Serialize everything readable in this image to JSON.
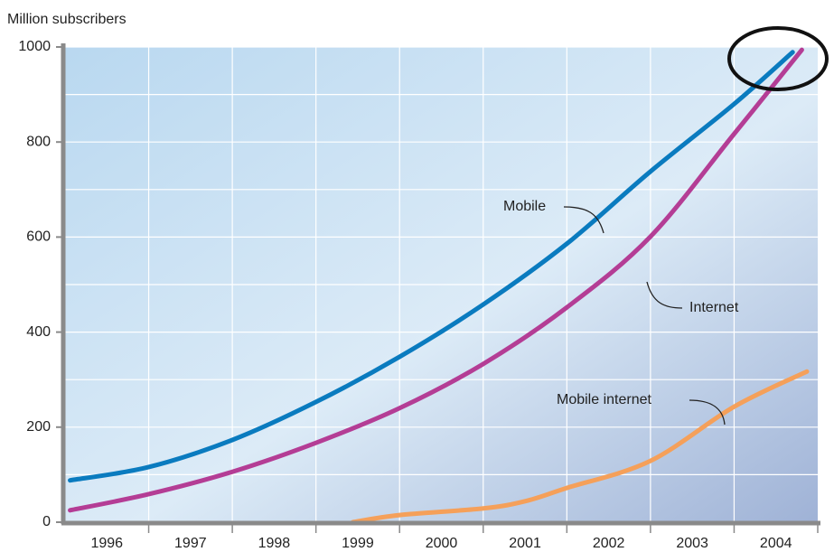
{
  "chart_data": {
    "type": "line",
    "title": "Million subscribers",
    "categories": [
      "1996",
      "1997",
      "1998",
      "1999",
      "2000",
      "2001",
      "2002",
      "2003",
      "2004"
    ],
    "xlim": [
      1996,
      2005
    ],
    "ylim": [
      0,
      1000
    ],
    "yticks": [
      0,
      200,
      400,
      600,
      800,
      1000
    ],
    "yminor": [
      100,
      300,
      500,
      700,
      900
    ],
    "grid": true,
    "series": [
      {
        "name": "Mobile",
        "color": "#0a7bbf",
        "x": [
          1996.06,
          1997,
          1998,
          1999,
          2000,
          2001,
          2002,
          2003,
          2004,
          2004.7
        ],
        "values": [
          88,
          116,
          173,
          253,
          348,
          458,
          586,
          738,
          880,
          989
        ]
      },
      {
        "name": "Internet",
        "color": "#b43d95",
        "x": [
          1996.06,
          1997,
          1998,
          1999,
          2000,
          2001,
          2002,
          2003,
          2004,
          2004.81
        ],
        "values": [
          25,
          59,
          106,
          167,
          240,
          333,
          452,
          601,
          817,
          994
        ]
      },
      {
        "name": "Mobile internet",
        "color": "#f5a05a",
        "x": [
          1999.44,
          2000,
          2001,
          2001.5,
          2002,
          2003,
          2004,
          2004.87
        ],
        "values": [
          0,
          15,
          29,
          44,
          72,
          129,
          243,
          317
        ]
      }
    ]
  }
}
